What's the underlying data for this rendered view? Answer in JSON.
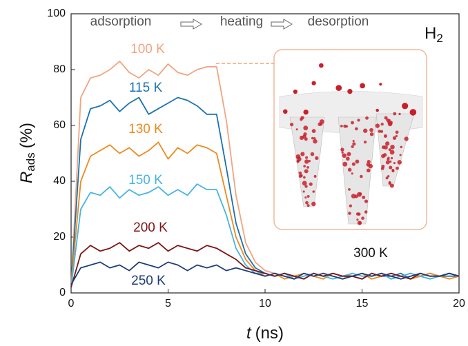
{
  "chart_data": {
    "type": "line",
    "x_label": {
      "symbol": "t",
      "unit": "(ns)"
    },
    "y_label": {
      "symbol": "R",
      "subscript": "ads",
      "unit": "(%)"
    },
    "species": {
      "base": "H",
      "subscript": "2"
    },
    "annotations": [
      "adsorption",
      "heating",
      "desorption",
      "300 K"
    ],
    "xlim": [
      0,
      20
    ],
    "ylim": [
      0,
      100
    ],
    "xticks": [
      0,
      5,
      10,
      15,
      20
    ],
    "yticks": [
      0,
      20,
      40,
      60,
      80,
      100
    ],
    "x": [
      0,
      0.5,
      1,
      1.5,
      2,
      2.5,
      3,
      3.5,
      4,
      4.5,
      5,
      5.5,
      6,
      6.5,
      7,
      7.5,
      8,
      8.5,
      9,
      9.5,
      10,
      10.5,
      11,
      11.5,
      12,
      12.5,
      13,
      13.5,
      14,
      14.5,
      15,
      15.5,
      16,
      16.5,
      17,
      17.5,
      18,
      18.5,
      19,
      19.5,
      20
    ],
    "series": [
      {
        "name": "100 K",
        "color": "#f2a47e",
        "values": [
          2,
          70,
          77,
          78,
          80,
          83,
          79,
          77,
          80,
          78,
          82,
          79,
          78,
          80,
          81,
          81,
          62,
          35,
          18,
          11,
          8,
          7,
          6,
          5,
          7,
          6,
          7,
          6,
          5,
          7,
          6,
          6,
          7,
          5,
          6,
          7,
          6,
          5,
          6,
          7,
          6
        ]
      },
      {
        "name": "115 K",
        "color": "#1a72b0",
        "values": [
          3,
          55,
          66,
          67,
          69,
          65,
          68,
          70,
          64,
          66,
          68,
          70,
          69,
          67,
          64,
          64,
          45,
          25,
          14,
          9,
          7,
          6,
          7,
          6,
          5,
          7,
          6,
          7,
          6,
          6,
          5,
          7,
          6,
          6,
          7,
          5,
          6,
          7,
          6,
          6,
          6
        ]
      },
      {
        "name": "130 K",
        "color": "#ee8a1c",
        "values": [
          3,
          40,
          49,
          51,
          53,
          50,
          52,
          49,
          51,
          54,
          48,
          52,
          50,
          53,
          52,
          50,
          35,
          20,
          12,
          8,
          6,
          7,
          5,
          6,
          7,
          6,
          5,
          7,
          6,
          6,
          7,
          5,
          6,
          7,
          6,
          5,
          6,
          7,
          6,
          5,
          6
        ]
      },
      {
        "name": "150 K",
        "color": "#45b4e6",
        "values": [
          2,
          30,
          36,
          35,
          38,
          34,
          37,
          35,
          36,
          38,
          35,
          37,
          35,
          39,
          37,
          37,
          28,
          16,
          10,
          7,
          7,
          6,
          7,
          5,
          6,
          7,
          6,
          5,
          6,
          7,
          6,
          6,
          7,
          5,
          6,
          7,
          6,
          5,
          6,
          7,
          6
        ]
      },
      {
        "name": "200 K",
        "color": "#7e1416",
        "values": [
          2,
          14,
          17,
          15,
          16,
          18,
          15,
          17,
          16,
          18,
          15,
          17,
          16,
          15,
          17,
          16,
          14,
          12,
          9,
          8,
          7,
          6,
          7,
          6,
          5,
          7,
          6,
          7,
          6,
          6,
          5,
          7,
          6,
          7,
          6,
          5,
          7,
          6,
          6,
          7,
          6
        ]
      },
      {
        "name": "250 K",
        "color": "#1d3d78",
        "values": [
          3,
          9,
          10,
          11,
          9,
          10,
          8,
          11,
          10,
          9,
          11,
          10,
          8,
          10,
          9,
          10,
          8,
          9,
          8,
          7,
          6,
          7,
          6,
          5,
          7,
          6,
          7,
          6,
          5,
          6,
          7,
          6,
          7,
          6,
          5,
          6,
          7,
          6,
          6,
          7,
          6
        ]
      }
    ]
  }
}
